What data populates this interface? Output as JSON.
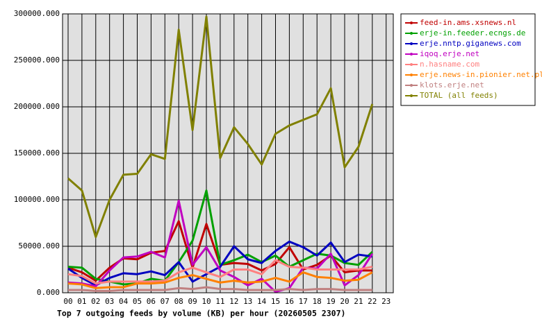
{
  "chart_data": {
    "type": "line",
    "title": "Top 7 outgoing feeds by volume (KB) per hour (20260505 2307)",
    "categories": [
      "00",
      "01",
      "02",
      "03",
      "04",
      "05",
      "06",
      "07",
      "08",
      "09",
      "10",
      "11",
      "12",
      "13",
      "14",
      "15",
      "16",
      "17",
      "18",
      "19",
      "20",
      "21",
      "22",
      "23"
    ],
    "ylim": [
      0,
      300000
    ],
    "yticks": [
      {
        "value": 0,
        "label": "0.000"
      },
      {
        "value": 50000,
        "label": "50000.000"
      },
      {
        "value": 100000,
        "label": "100000.000"
      },
      {
        "value": 150000,
        "label": "150000.000"
      },
      {
        "value": 200000,
        "label": "200000.000"
      },
      {
        "value": 250000,
        "label": "250000.000"
      },
      {
        "value": 300000,
        "label": "300000.000"
      }
    ],
    "grid": true,
    "legend": "right",
    "series": [
      {
        "name": "feed-in.ams.xsnews.nl",
        "color": "#c00000",
        "values": [
          27000,
          22000,
          13000,
          27000,
          37000,
          36000,
          43000,
          45000,
          77000,
          27000,
          74000,
          30000,
          32000,
          31000,
          24000,
          31000,
          49000,
          25000,
          30000,
          40000,
          22000,
          24000,
          24000,
          null
        ]
      },
      {
        "name": "erje-in.feeder.ecngs.de",
        "color": "#00a000",
        "values": [
          28000,
          27000,
          15000,
          12000,
          9000,
          10000,
          15000,
          13000,
          33000,
          56000,
          110000,
          30000,
          35000,
          41000,
          33000,
          40000,
          28000,
          35000,
          42000,
          40000,
          32000,
          30000,
          44000,
          null
        ]
      },
      {
        "name": "erje.nntp.giganews.com",
        "color": "#0000c0",
        "values": [
          26000,
          16000,
          8000,
          16000,
          21000,
          20000,
          23000,
          19000,
          33000,
          12000,
          20000,
          28000,
          50000,
          36000,
          32000,
          45000,
          55000,
          49000,
          40000,
          54000,
          33000,
          41000,
          39000,
          null
        ]
      },
      {
        "name": "iqoq.erje.net",
        "color": "#c000c0",
        "values": [
          11000,
          10000,
          7000,
          24000,
          38000,
          39000,
          44000,
          38000,
          99000,
          30000,
          49000,
          24000,
          17000,
          8000,
          15000,
          1000,
          5000,
          27000,
          26000,
          42000,
          8000,
          19000,
          42000,
          null
        ]
      },
      {
        "name": "n.hasname.com",
        "color": "#ff8080",
        "values": [
          20000,
          18000,
          10000,
          12000,
          12000,
          12000,
          12000,
          13000,
          22000,
          27000,
          22000,
          17000,
          25000,
          25000,
          20000,
          35000,
          28000,
          27000,
          25000,
          25000,
          25000,
          25000,
          28000,
          null
        ]
      },
      {
        "name": "erje.news-in.pionier.net.pl",
        "color": "#ff8000",
        "values": [
          10000,
          9000,
          5000,
          6000,
          6000,
          10000,
          10000,
          11000,
          16000,
          19000,
          15000,
          11000,
          13000,
          11000,
          12000,
          16000,
          12000,
          22000,
          17000,
          16000,
          13000,
          14000,
          22000,
          null
        ]
      },
      {
        "name": "klots.erje.net",
        "color": "#c08080",
        "values": [
          3000,
          3000,
          2000,
          2000,
          3000,
          3000,
          3000,
          3000,
          5000,
          4000,
          6000,
          4000,
          4000,
          3000,
          3000,
          3000,
          4000,
          3000,
          4000,
          4000,
          3000,
          3000,
          3000,
          null
        ]
      },
      {
        "name": "TOTAL (all feeds)",
        "color": "#808000",
        "values": [
          123000,
          110000,
          60000,
          100000,
          127000,
          128000,
          149000,
          144000,
          283000,
          175000,
          297000,
          145000,
          178000,
          160000,
          138000,
          171000,
          180000,
          186000,
          192000,
          220000,
          135000,
          157000,
          203000,
          null
        ]
      }
    ]
  }
}
